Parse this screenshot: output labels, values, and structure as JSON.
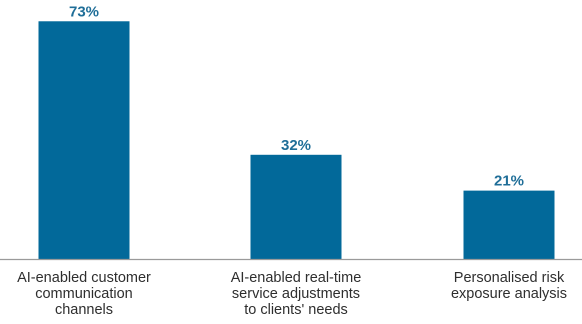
{
  "chart_data": {
    "type": "bar",
    "categories": [
      [
        "AI-enabled customer",
        "communication",
        "channels"
      ],
      [
        "AI-enabled real-time",
        "service adjustments",
        "to clients' needs"
      ],
      [
        "Personalised risk",
        "exposure analysis"
      ]
    ],
    "values": [
      73,
      32,
      21
    ],
    "value_labels": [
      "73%",
      "32%",
      "21%"
    ],
    "ylim": [
      0,
      78
    ],
    "bar_color": "#02699A",
    "label_color": "#1F6E98",
    "axis_color": "#9A9A9A",
    "grid": false,
    "title": "",
    "xlabel": "",
    "ylabel": ""
  }
}
